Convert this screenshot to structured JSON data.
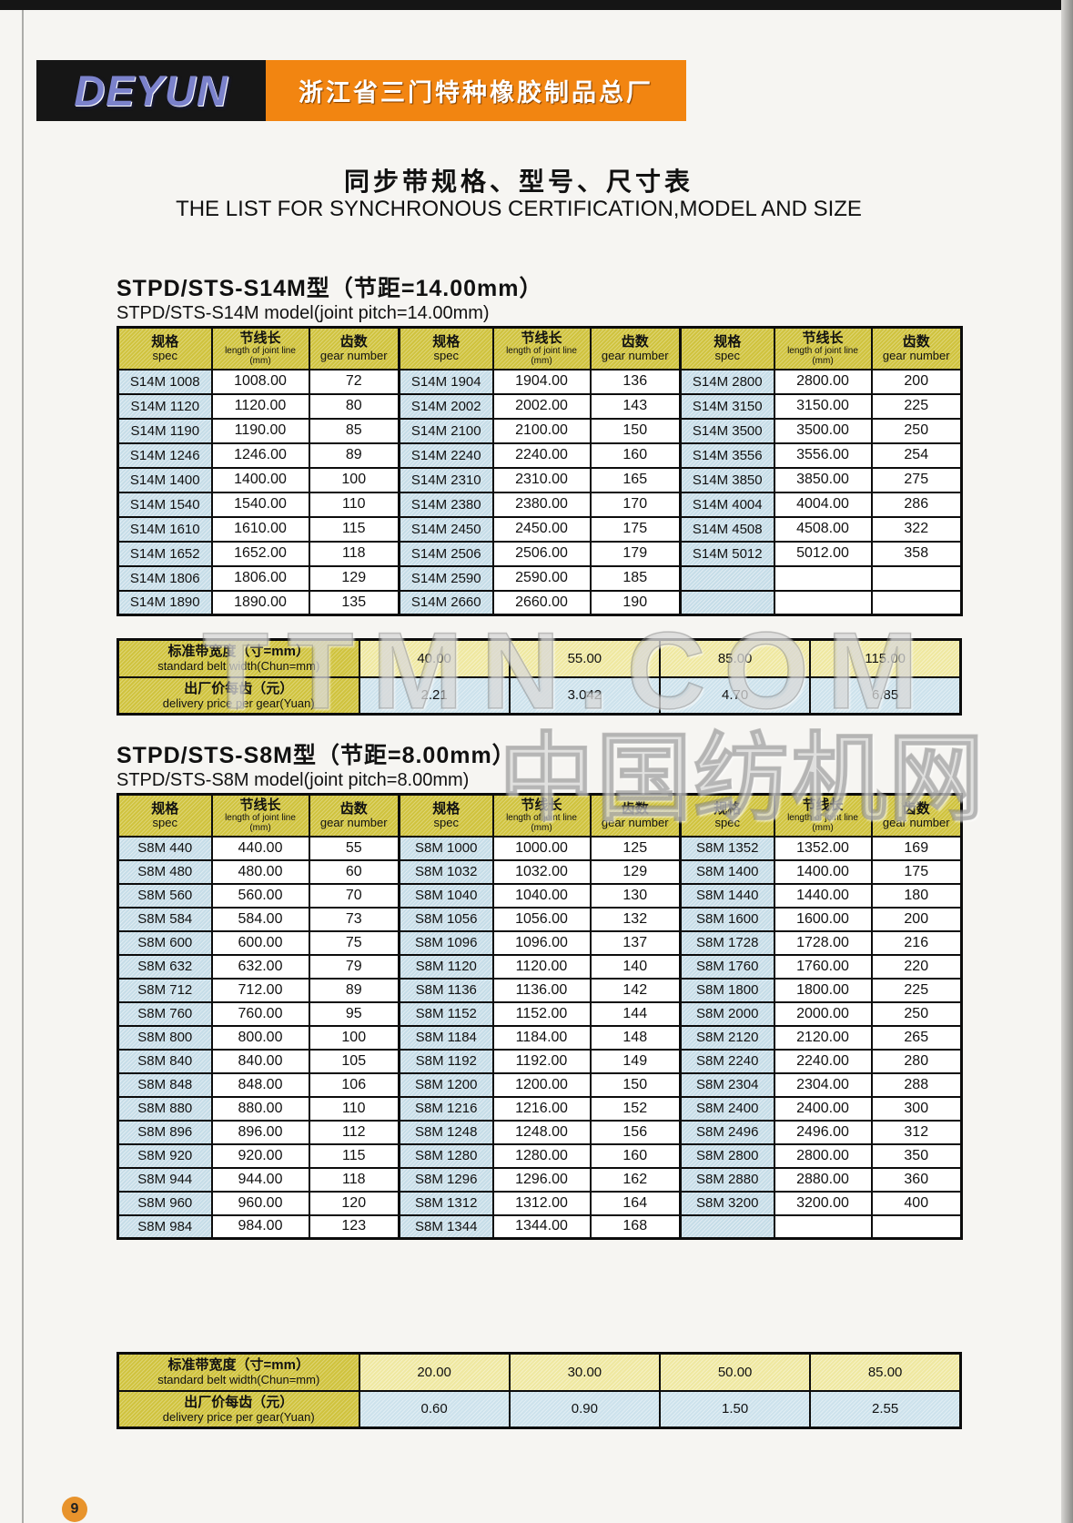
{
  "header": {
    "logo_text": "DEYUN",
    "company_cn": "浙江省三门特种橡胶制品总厂"
  },
  "title": {
    "cn": "同步带规格、型号、尺寸表",
    "en": "THE LIST FOR SYNCHRONOUS CERTIFICATION,MODEL AND SIZE"
  },
  "watermark": {
    "line1": "TTMN.COM",
    "line2": "中国纺机网"
  },
  "page_number": "9",
  "col_headers": {
    "spec_cn": "规格",
    "spec_en": "spec",
    "length_cn": "节线长",
    "length_en": "length of joint line",
    "length_unit": "(mm)",
    "gear_cn": "齿数",
    "gear_en": "gear number"
  },
  "sections": [
    {
      "title_cn": "STPD/STS-S14M型（节距=14.00mm）",
      "title_en": "STPD/STS-S14M model(joint pitch=14.00mm)",
      "rows": [
        [
          "S14M 1008",
          "1008.00",
          "72",
          "S14M 1904",
          "1904.00",
          "136",
          "S14M 2800",
          "2800.00",
          "200"
        ],
        [
          "S14M 1120",
          "1120.00",
          "80",
          "S14M 2002",
          "2002.00",
          "143",
          "S14M 3150",
          "3150.00",
          "225"
        ],
        [
          "S14M 1190",
          "1190.00",
          "85",
          "S14M 2100",
          "2100.00",
          "150",
          "S14M 3500",
          "3500.00",
          "250"
        ],
        [
          "S14M 1246",
          "1246.00",
          "89",
          "S14M 2240",
          "2240.00",
          "160",
          "S14M 3556",
          "3556.00",
          "254"
        ],
        [
          "S14M 1400",
          "1400.00",
          "100",
          "S14M 2310",
          "2310.00",
          "165",
          "S14M 3850",
          "3850.00",
          "275"
        ],
        [
          "S14M 1540",
          "1540.00",
          "110",
          "S14M 2380",
          "2380.00",
          "170",
          "S14M 4004",
          "4004.00",
          "286"
        ],
        [
          "S14M 1610",
          "1610.00",
          "115",
          "S14M 2450",
          "2450.00",
          "175",
          "S14M 4508",
          "4508.00",
          "322"
        ],
        [
          "S14M 1652",
          "1652.00",
          "118",
          "S14M 2506",
          "2506.00",
          "179",
          "S14M 5012",
          "5012.00",
          "358"
        ],
        [
          "S14M 1806",
          "1806.00",
          "129",
          "S14M 2590",
          "2590.00",
          "185",
          "",
          "",
          ""
        ],
        [
          "S14M 1890",
          "1890.00",
          "135",
          "S14M 2660",
          "2660.00",
          "190",
          "",
          "",
          ""
        ]
      ],
      "price": {
        "width_label_cn": "标准带宽度（寸=mm）",
        "width_label_en": "standard belt width(Chun=mm)",
        "price_label_cn": "出厂价每齿（元）",
        "price_label_en": "delivery price per gear(Yuan)",
        "widths": [
          "40.00",
          "55.00",
          "85.00",
          "115.00"
        ],
        "prices": [
          "2.21",
          "3.042",
          "4.70",
          "6.85"
        ]
      }
    },
    {
      "title_cn": "STPD/STS-S8M型（节距=8.00mm）",
      "title_en": "STPD/STS-S8M model(joint pitch=8.00mm)",
      "rows": [
        [
          "S8M 440",
          "440.00",
          "55",
          "S8M 1000",
          "1000.00",
          "125",
          "S8M 1352",
          "1352.00",
          "169"
        ],
        [
          "S8M 480",
          "480.00",
          "60",
          "S8M 1032",
          "1032.00",
          "129",
          "S8M 1400",
          "1400.00",
          "175"
        ],
        [
          "S8M 560",
          "560.00",
          "70",
          "S8M 1040",
          "1040.00",
          "130",
          "S8M 1440",
          "1440.00",
          "180"
        ],
        [
          "S8M 584",
          "584.00",
          "73",
          "S8M 1056",
          "1056.00",
          "132",
          "S8M 1600",
          "1600.00",
          "200"
        ],
        [
          "S8M 600",
          "600.00",
          "75",
          "S8M 1096",
          "1096.00",
          "137",
          "S8M 1728",
          "1728.00",
          "216"
        ],
        [
          "S8M 632",
          "632.00",
          "79",
          "S8M 1120",
          "1120.00",
          "140",
          "S8M 1760",
          "1760.00",
          "220"
        ],
        [
          "S8M 712",
          "712.00",
          "89",
          "S8M 1136",
          "1136.00",
          "142",
          "S8M 1800",
          "1800.00",
          "225"
        ],
        [
          "S8M 760",
          "760.00",
          "95",
          "S8M 1152",
          "1152.00",
          "144",
          "S8M 2000",
          "2000.00",
          "250"
        ],
        [
          "S8M 800",
          "800.00",
          "100",
          "S8M 1184",
          "1184.00",
          "148",
          "S8M 2120",
          "2120.00",
          "265"
        ],
        [
          "S8M 840",
          "840.00",
          "105",
          "S8M 1192",
          "1192.00",
          "149",
          "S8M 2240",
          "2240.00",
          "280"
        ],
        [
          "S8M 848",
          "848.00",
          "106",
          "S8M 1200",
          "1200.00",
          "150",
          "S8M 2304",
          "2304.00",
          "288"
        ],
        [
          "S8M 880",
          "880.00",
          "110",
          "S8M 1216",
          "1216.00",
          "152",
          "S8M 2400",
          "2400.00",
          "300"
        ],
        [
          "S8M 896",
          "896.00",
          "112",
          "S8M 1248",
          "1248.00",
          "156",
          "S8M 2496",
          "2496.00",
          "312"
        ],
        [
          "S8M 920",
          "920.00",
          "115",
          "S8M 1280",
          "1280.00",
          "160",
          "S8M 2800",
          "2800.00",
          "350"
        ],
        [
          "S8M 944",
          "944.00",
          "118",
          "S8M 1296",
          "1296.00",
          "162",
          "S8M 2880",
          "2880.00",
          "360"
        ],
        [
          "S8M 960",
          "960.00",
          "120",
          "S8M 1312",
          "1312.00",
          "164",
          "S8M 3200",
          "3200.00",
          "400"
        ],
        [
          "S8M 984",
          "984.00",
          "123",
          "S8M 1344",
          "1344.00",
          "168",
          "",
          "",
          ""
        ]
      ],
      "price": {
        "width_label_cn": "标准带宽度（寸=mm）",
        "width_label_en": "standard belt width(Chun=mm)",
        "price_label_cn": "出厂价每齿（元）",
        "price_label_en": "delivery price per gear(Yuan)",
        "widths": [
          "20.00",
          "30.00",
          "50.00",
          "85.00"
        ],
        "prices": [
          "0.60",
          "0.90",
          "1.50",
          "2.55"
        ]
      }
    }
  ]
}
